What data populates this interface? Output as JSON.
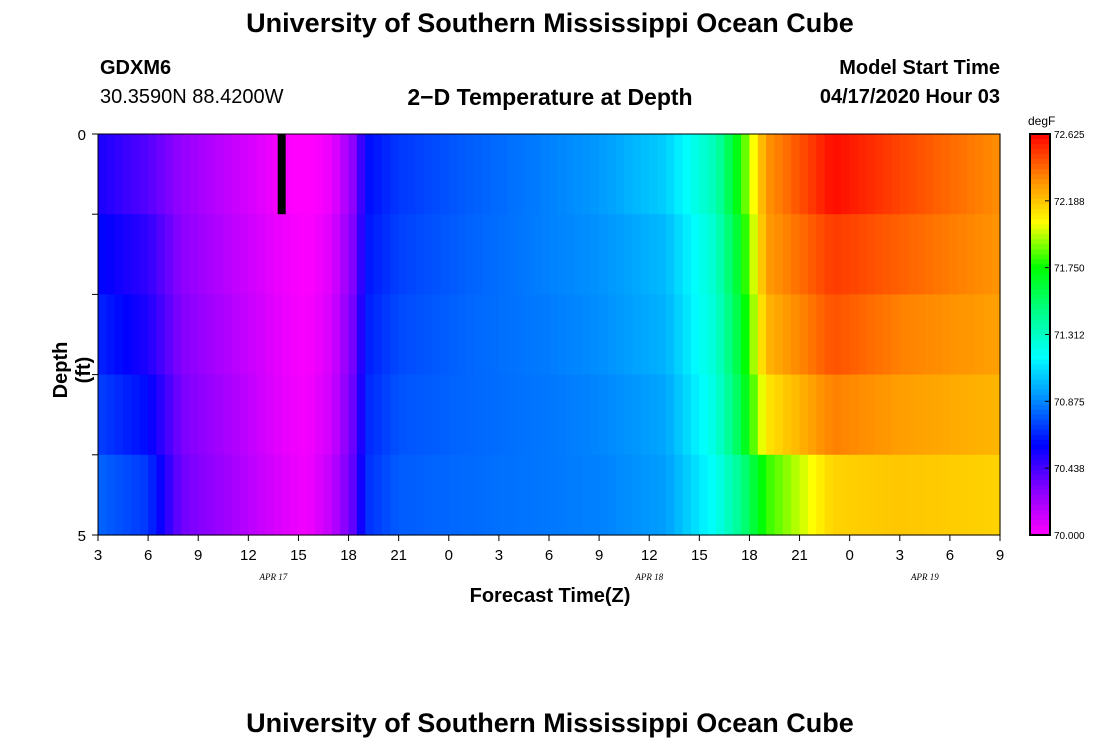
{
  "page": {
    "title_top": "University of Southern Mississippi Ocean Cube",
    "title_bottom": "University of Southern Mississippi Ocean Cube",
    "station_id": "GDXM6",
    "coordinates": "30.3590N 88.4200W",
    "subtitle": "2−D Temperature at Depth",
    "model_start_label": "Model Start Time",
    "model_start_value": "04/17/2020 Hour 03"
  },
  "chart_data": {
    "type": "heatmap",
    "title": "2−D Temperature at Depth",
    "xlabel": "Forecast Time(Z)",
    "ylabel": "Depth (ft)",
    "x_tick_labels": [
      "3",
      "6",
      "9",
      "12",
      "15",
      "18",
      "21",
      "0",
      "3",
      "6",
      "9",
      "12",
      "15",
      "18",
      "21",
      "0",
      "3",
      "6",
      "9"
    ],
    "x_hours_from_start": [
      0,
      54
    ],
    "date_labels": [
      {
        "label": "APR  17",
        "hour": 10.5
      },
      {
        "label": "APR  18",
        "hour": 33
      },
      {
        "label": "APR  19",
        "hour": 49.5
      }
    ],
    "y_tick_labels": [
      "0",
      "5"
    ],
    "ylim": [
      0,
      5
    ],
    "depth_rows": 5,
    "colorbar": {
      "unit": "degF",
      "min": 70.0,
      "max": 72.625,
      "tick_labels": [
        "72.625",
        "72.188",
        "71.750",
        "71.312",
        "70.875",
        "70.438",
        "70.000"
      ],
      "colors": [
        "#ff00ff",
        "#8800ff",
        "#0000ff",
        "#0088ff",
        "#00ffff",
        "#00ff88",
        "#00ff00",
        "#ffff00",
        "#ff8800",
        "#ff0000"
      ]
    },
    "temperature_keyframes_degF": [
      {
        "hour": 0,
        "values": [
          70.53,
          70.6,
          70.66,
          70.72,
          70.8
        ]
      },
      {
        "hour": 3,
        "values": [
          70.4,
          70.48,
          70.52,
          70.6,
          70.7
        ]
      },
      {
        "hour": 5,
        "values": [
          70.26,
          70.28,
          70.3,
          70.32,
          70.34
        ]
      },
      {
        "hour": 8,
        "values": [
          70.14,
          70.16,
          70.18,
          70.2,
          70.22
        ]
      },
      {
        "hour": 11,
        "values": [
          70.02,
          70.04,
          70.05,
          70.06,
          70.08
        ]
      },
      {
        "hour": 12.5,
        "values": [
          69.98,
          70.0,
          70.01,
          70.02,
          70.03
        ]
      },
      {
        "hour": 14,
        "values": [
          70.05,
          70.08,
          70.1,
          70.12,
          70.15
        ]
      },
      {
        "hour": 15.5,
        "values": [
          70.32,
          70.35,
          70.38,
          70.4,
          70.42
        ]
      },
      {
        "hour": 16,
        "values": [
          70.6,
          70.62,
          70.64,
          70.66,
          70.68
        ]
      },
      {
        "hour": 18,
        "values": [
          70.7,
          70.72,
          70.74,
          70.76,
          70.78
        ]
      },
      {
        "hour": 22,
        "values": [
          70.78,
          70.79,
          70.8,
          70.8,
          70.81
        ]
      },
      {
        "hour": 27,
        "values": [
          70.86,
          70.86,
          70.85,
          70.84,
          70.84
        ]
      },
      {
        "hour": 30,
        "values": [
          70.92,
          70.9,
          70.89,
          70.87,
          70.86
        ]
      },
      {
        "hour": 34,
        "values": [
          71.05,
          71.0,
          70.98,
          70.95,
          70.93
        ]
      },
      {
        "hour": 37,
        "values": [
          71.35,
          71.3,
          71.28,
          71.25,
          71.2
        ]
      },
      {
        "hour": 38.5,
        "values": [
          71.78,
          71.7,
          71.65,
          71.6,
          71.45
        ]
      },
      {
        "hour": 40,
        "values": [
          72.3,
          72.28,
          72.22,
          72.1,
          71.8
        ]
      },
      {
        "hour": 44,
        "values": [
          72.6,
          72.5,
          72.45,
          72.35,
          72.15
        ]
      },
      {
        "hour": 48,
        "values": [
          72.48,
          72.42,
          72.35,
          72.28,
          72.18
        ]
      },
      {
        "hour": 54,
        "values": [
          72.32,
          72.3,
          72.27,
          72.22,
          72.15
        ]
      }
    ],
    "marker": {
      "hour": 11,
      "depth_row": 0,
      "color": "#000000"
    }
  }
}
